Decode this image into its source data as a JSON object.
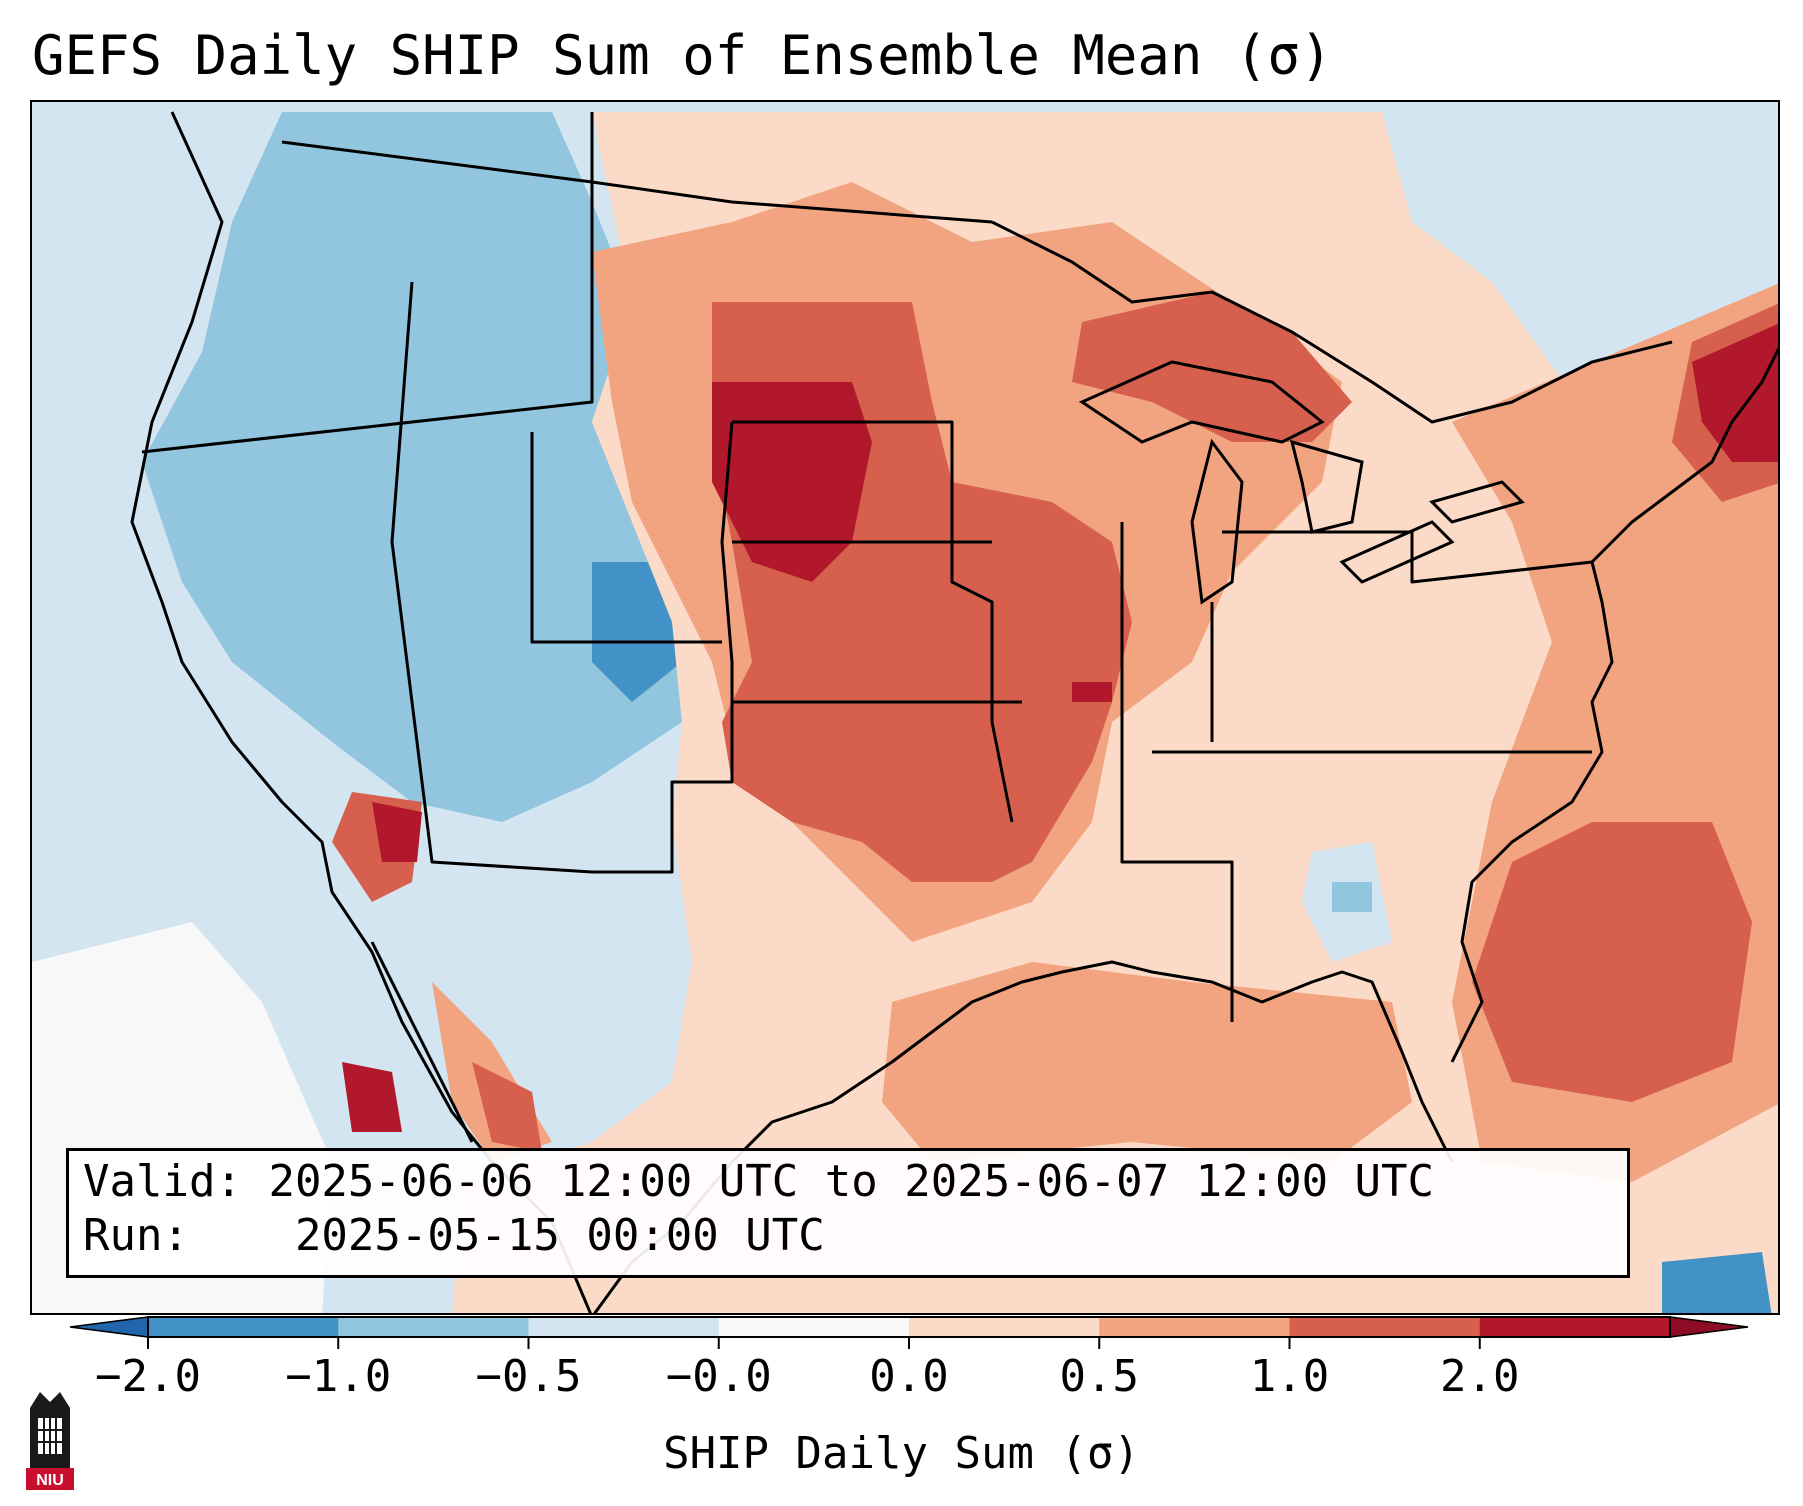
{
  "title": "GEFS Daily SHIP Sum of Ensemble Mean (σ)",
  "info": {
    "valid_label": "Valid:",
    "valid_value": "2025-06-06 12:00 UTC to 2025-06-07 12:00 UTC",
    "run_label": "Run:",
    "run_value": "2025-05-15 00:00 UTC"
  },
  "colorbar": {
    "label": "SHIP Daily Sum (σ)",
    "ticks": [
      "−2.0",
      "−1.0",
      "−0.5",
      "−0.0",
      "0.0",
      "0.5",
      "1.0",
      "2.0"
    ],
    "segment_colors": [
      "#4392c7",
      "#92c5de",
      "#d2e5f0",
      "#f8f8f8",
      "#fbdbc8",
      "#f2a37f",
      "#d6604d",
      "#b2182b"
    ],
    "under_color": "#2166ac",
    "over_color": "#8c0d25"
  },
  "logo": {
    "text": "NIU"
  },
  "map": {
    "region": "Contiguous United States",
    "colors": {
      "strong_negative": "#4392c7",
      "moderate_negative": "#92c5de",
      "weak_negative": "#d2e5f0",
      "neutral": "#f8f8f8",
      "weak_positive": "#fbdbc8",
      "moderate_positive": "#f2a37f",
      "strong_positive": "#d6604d",
      "extreme_positive": "#b2182b"
    }
  }
}
